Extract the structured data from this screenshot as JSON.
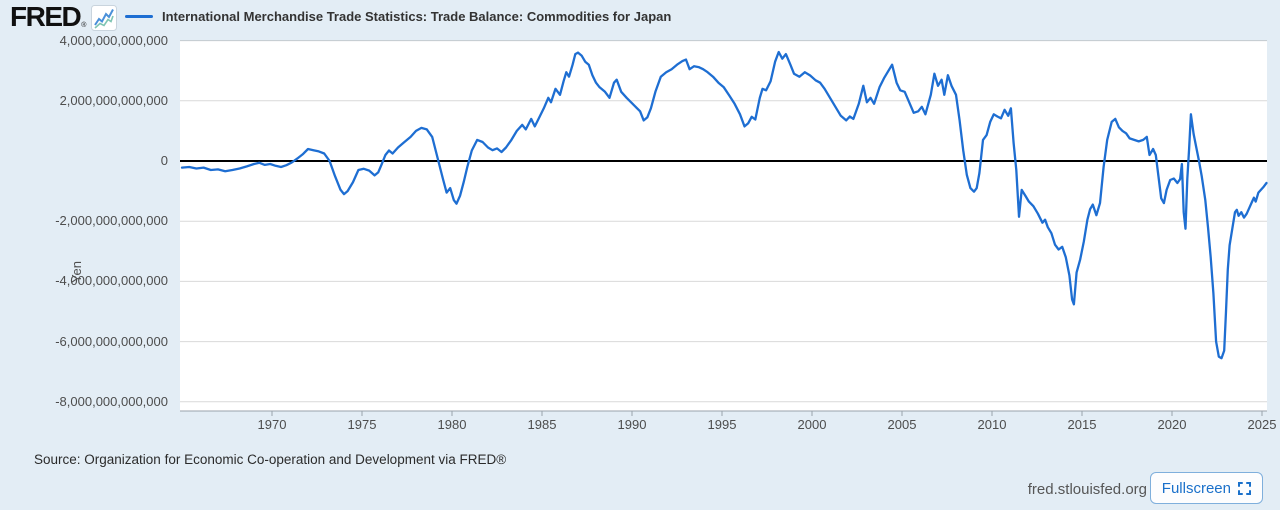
{
  "header": {
    "logo_text": "FRED",
    "logo_reg": "®"
  },
  "source": {
    "text": "Source: Organization for Economic Co-operation and Development via FRED®"
  },
  "footer": {
    "site": "fred.stlouisfed.org",
    "fullscreen_label": "Fullscreen"
  },
  "colors": {
    "background": "#e3edf5",
    "plot_background": "#ffffff",
    "grid": "#d9d9d9",
    "top_border": "#c3c9ce",
    "zero_line": "#000000",
    "axis_line": "#98a2ab",
    "axis_text": "#4d4d4d",
    "series_blue": "#1e6ed2",
    "link_blue": "#1a70ca",
    "logo_icon_blue": "#4a90d9",
    "logo_icon_teal": "#7fc5b3"
  },
  "chart_data": {
    "type": "line",
    "title": "International Merchandise Trade Statistics: Trade Balance: Commodities for Japan",
    "xlabel": "",
    "ylabel": "Yen",
    "legend_position": "top",
    "grid": true,
    "value_unit": "trillions of yen",
    "xlim": [
      1964.9,
      2025.3
    ],
    "ylim_trillions": [
      -8.6,
      4.0
    ],
    "x_ticks": [
      1970,
      1975,
      1980,
      1985,
      1990,
      1995,
      2000,
      2005,
      2010,
      2015,
      2020,
      2025
    ],
    "y_ticks": {
      "values": [
        4,
        2,
        0,
        -2,
        -4,
        -6,
        -8
      ],
      "labels": [
        "4,000,000,000,000",
        "2,000,000,000,000",
        "0",
        "-2,000,000,000,000",
        "-4,000,000,000,000",
        "-6,000,000,000,000",
        "-8,000,000,000,000"
      ]
    },
    "series": [
      {
        "name": "International Merchandise Trade Statistics: Trade Balance: Commodities for Japan",
        "color": "#1e6ed2",
        "points": [
          [
            1965.0,
            -0.22
          ],
          [
            1965.4,
            -0.2
          ],
          [
            1965.8,
            -0.25
          ],
          [
            1966.2,
            -0.22
          ],
          [
            1966.6,
            -0.3
          ],
          [
            1967.0,
            -0.28
          ],
          [
            1967.4,
            -0.34
          ],
          [
            1967.8,
            -0.3
          ],
          [
            1968.2,
            -0.25
          ],
          [
            1968.6,
            -0.18
          ],
          [
            1969.0,
            -0.1
          ],
          [
            1969.3,
            -0.06
          ],
          [
            1969.6,
            -0.13
          ],
          [
            1969.9,
            -0.1
          ],
          [
            1970.2,
            -0.16
          ],
          [
            1970.5,
            -0.2
          ],
          [
            1970.8,
            -0.14
          ],
          [
            1971.1,
            -0.05
          ],
          [
            1971.4,
            0.08
          ],
          [
            1971.7,
            0.22
          ],
          [
            1972.0,
            0.4
          ],
          [
            1972.3,
            0.36
          ],
          [
            1972.6,
            0.32
          ],
          [
            1972.9,
            0.25
          ],
          [
            1973.2,
            0.0
          ],
          [
            1973.5,
            -0.5
          ],
          [
            1973.8,
            -0.95
          ],
          [
            1974.0,
            -1.1
          ],
          [
            1974.2,
            -1.0
          ],
          [
            1974.5,
            -0.7
          ],
          [
            1974.8,
            -0.3
          ],
          [
            1975.1,
            -0.26
          ],
          [
            1975.4,
            -0.32
          ],
          [
            1975.7,
            -0.48
          ],
          [
            1975.9,
            -0.38
          ],
          [
            1976.1,
            -0.1
          ],
          [
            1976.3,
            0.2
          ],
          [
            1976.5,
            0.35
          ],
          [
            1976.7,
            0.25
          ],
          [
            1977.0,
            0.45
          ],
          [
            1977.3,
            0.6
          ],
          [
            1977.7,
            0.8
          ],
          [
            1978.0,
            1.0
          ],
          [
            1978.3,
            1.1
          ],
          [
            1978.6,
            1.05
          ],
          [
            1978.9,
            0.8
          ],
          [
            1979.2,
            0.1
          ],
          [
            1979.5,
            -0.6
          ],
          [
            1979.7,
            -1.05
          ],
          [
            1979.9,
            -0.9
          ],
          [
            1980.1,
            -1.3
          ],
          [
            1980.25,
            -1.42
          ],
          [
            1980.45,
            -1.15
          ],
          [
            1980.65,
            -0.7
          ],
          [
            1980.85,
            -0.2
          ],
          [
            1981.1,
            0.35
          ],
          [
            1981.4,
            0.7
          ],
          [
            1981.7,
            0.63
          ],
          [
            1982.0,
            0.45
          ],
          [
            1982.25,
            0.36
          ],
          [
            1982.5,
            0.42
          ],
          [
            1982.75,
            0.3
          ],
          [
            1983.0,
            0.45
          ],
          [
            1983.3,
            0.7
          ],
          [
            1983.6,
            1.0
          ],
          [
            1983.9,
            1.2
          ],
          [
            1984.1,
            1.05
          ],
          [
            1984.4,
            1.4
          ],
          [
            1984.6,
            1.15
          ],
          [
            1984.85,
            1.45
          ],
          [
            1985.1,
            1.75
          ],
          [
            1985.35,
            2.1
          ],
          [
            1985.5,
            1.95
          ],
          [
            1985.75,
            2.4
          ],
          [
            1986.0,
            2.2
          ],
          [
            1986.2,
            2.65
          ],
          [
            1986.35,
            2.95
          ],
          [
            1986.5,
            2.8
          ],
          [
            1986.7,
            3.2
          ],
          [
            1986.85,
            3.55
          ],
          [
            1987.0,
            3.6
          ],
          [
            1987.2,
            3.5
          ],
          [
            1987.4,
            3.3
          ],
          [
            1987.6,
            3.2
          ],
          [
            1987.8,
            2.85
          ],
          [
            1988.0,
            2.6
          ],
          [
            1988.2,
            2.45
          ],
          [
            1988.5,
            2.3
          ],
          [
            1988.75,
            2.1
          ],
          [
            1989.0,
            2.6
          ],
          [
            1989.15,
            2.7
          ],
          [
            1989.4,
            2.3
          ],
          [
            1989.7,
            2.1
          ],
          [
            1989.95,
            1.95
          ],
          [
            1990.2,
            1.8
          ],
          [
            1990.45,
            1.65
          ],
          [
            1990.65,
            1.35
          ],
          [
            1990.85,
            1.45
          ],
          [
            1991.05,
            1.75
          ],
          [
            1991.3,
            2.3
          ],
          [
            1991.6,
            2.8
          ],
          [
            1991.9,
            2.95
          ],
          [
            1992.2,
            3.05
          ],
          [
            1992.5,
            3.2
          ],
          [
            1992.8,
            3.32
          ],
          [
            1993.0,
            3.37
          ],
          [
            1993.2,
            3.05
          ],
          [
            1993.45,
            3.15
          ],
          [
            1993.7,
            3.12
          ],
          [
            1993.95,
            3.05
          ],
          [
            1994.2,
            2.95
          ],
          [
            1994.5,
            2.8
          ],
          [
            1994.8,
            2.6
          ],
          [
            1995.1,
            2.45
          ],
          [
            1995.4,
            2.18
          ],
          [
            1995.7,
            1.9
          ],
          [
            1996.0,
            1.55
          ],
          [
            1996.25,
            1.15
          ],
          [
            1996.45,
            1.25
          ],
          [
            1996.65,
            1.47
          ],
          [
            1996.85,
            1.38
          ],
          [
            1997.1,
            2.1
          ],
          [
            1997.25,
            2.4
          ],
          [
            1997.45,
            2.35
          ],
          [
            1997.7,
            2.65
          ],
          [
            1997.95,
            3.3
          ],
          [
            1998.15,
            3.62
          ],
          [
            1998.35,
            3.4
          ],
          [
            1998.55,
            3.55
          ],
          [
            1998.8,
            3.2
          ],
          [
            1999.0,
            2.9
          ],
          [
            1999.3,
            2.8
          ],
          [
            1999.6,
            2.95
          ],
          [
            1999.9,
            2.84
          ],
          [
            2000.2,
            2.68
          ],
          [
            2000.45,
            2.6
          ],
          [
            2000.7,
            2.4
          ],
          [
            2001.0,
            2.1
          ],
          [
            2001.3,
            1.8
          ],
          [
            2001.6,
            1.5
          ],
          [
            2001.9,
            1.35
          ],
          [
            2002.1,
            1.48
          ],
          [
            2002.3,
            1.4
          ],
          [
            2002.6,
            1.9
          ],
          [
            2002.85,
            2.5
          ],
          [
            2003.05,
            1.95
          ],
          [
            2003.25,
            2.1
          ],
          [
            2003.45,
            1.9
          ],
          [
            2003.75,
            2.45
          ],
          [
            2004.0,
            2.75
          ],
          [
            2004.25,
            3.0
          ],
          [
            2004.45,
            3.2
          ],
          [
            2004.7,
            2.6
          ],
          [
            2004.9,
            2.35
          ],
          [
            2005.15,
            2.3
          ],
          [
            2005.4,
            1.95
          ],
          [
            2005.65,
            1.6
          ],
          [
            2005.9,
            1.65
          ],
          [
            2006.1,
            1.8
          ],
          [
            2006.3,
            1.55
          ],
          [
            2006.6,
            2.2
          ],
          [
            2006.8,
            2.9
          ],
          [
            2007.0,
            2.5
          ],
          [
            2007.2,
            2.7
          ],
          [
            2007.35,
            2.2
          ],
          [
            2007.55,
            2.85
          ],
          [
            2007.75,
            2.5
          ],
          [
            2008.0,
            2.2
          ],
          [
            2008.2,
            1.35
          ],
          [
            2008.4,
            0.36
          ],
          [
            2008.6,
            -0.46
          ],
          [
            2008.8,
            -0.9
          ],
          [
            2009.0,
            -1.02
          ],
          [
            2009.15,
            -0.9
          ],
          [
            2009.3,
            -0.4
          ],
          [
            2009.5,
            0.7
          ],
          [
            2009.7,
            0.86
          ],
          [
            2009.9,
            1.3
          ],
          [
            2010.1,
            1.55
          ],
          [
            2010.3,
            1.48
          ],
          [
            2010.5,
            1.42
          ],
          [
            2010.7,
            1.7
          ],
          [
            2010.9,
            1.5
          ],
          [
            2011.05,
            1.75
          ],
          [
            2011.2,
            0.6
          ],
          [
            2011.35,
            -0.3
          ],
          [
            2011.5,
            -1.85
          ],
          [
            2011.65,
            -0.96
          ],
          [
            2011.85,
            -1.15
          ],
          [
            2012.05,
            -1.35
          ],
          [
            2012.3,
            -1.5
          ],
          [
            2012.55,
            -1.75
          ],
          [
            2012.8,
            -2.05
          ],
          [
            2012.95,
            -1.95
          ],
          [
            2013.1,
            -2.2
          ],
          [
            2013.3,
            -2.4
          ],
          [
            2013.5,
            -2.78
          ],
          [
            2013.7,
            -2.94
          ],
          [
            2013.9,
            -2.85
          ],
          [
            2014.1,
            -3.2
          ],
          [
            2014.3,
            -3.8
          ],
          [
            2014.45,
            -4.6
          ],
          [
            2014.55,
            -4.76
          ],
          [
            2014.7,
            -3.7
          ],
          [
            2014.9,
            -3.27
          ],
          [
            2015.1,
            -2.68
          ],
          [
            2015.3,
            -1.95
          ],
          [
            2015.45,
            -1.6
          ],
          [
            2015.6,
            -1.45
          ],
          [
            2015.8,
            -1.8
          ],
          [
            2016.0,
            -1.4
          ],
          [
            2016.2,
            -0.2
          ],
          [
            2016.4,
            0.7
          ],
          [
            2016.65,
            1.3
          ],
          [
            2016.85,
            1.4
          ],
          [
            2017.05,
            1.12
          ],
          [
            2017.25,
            1.0
          ],
          [
            2017.45,
            0.92
          ],
          [
            2017.65,
            0.75
          ],
          [
            2017.9,
            0.7
          ],
          [
            2018.15,
            0.65
          ],
          [
            2018.4,
            0.7
          ],
          [
            2018.6,
            0.8
          ],
          [
            2018.75,
            0.2
          ],
          [
            2018.95,
            0.4
          ],
          [
            2019.1,
            0.2
          ],
          [
            2019.25,
            -0.52
          ],
          [
            2019.4,
            -1.24
          ],
          [
            2019.55,
            -1.4
          ],
          [
            2019.7,
            -0.96
          ],
          [
            2019.9,
            -0.63
          ],
          [
            2020.1,
            -0.58
          ],
          [
            2020.3,
            -0.73
          ],
          [
            2020.45,
            -0.6
          ],
          [
            2020.55,
            -0.1
          ],
          [
            2020.65,
            -1.7
          ],
          [
            2020.75,
            -2.25
          ],
          [
            2020.85,
            -0.6
          ],
          [
            2020.95,
            0.4
          ],
          [
            2021.05,
            1.55
          ],
          [
            2021.2,
            0.9
          ],
          [
            2021.35,
            0.45
          ],
          [
            2021.5,
            0.0
          ],
          [
            2021.65,
            -0.5
          ],
          [
            2021.85,
            -1.3
          ],
          [
            2022.0,
            -2.2
          ],
          [
            2022.15,
            -3.2
          ],
          [
            2022.3,
            -4.4
          ],
          [
            2022.45,
            -6.0
          ],
          [
            2022.6,
            -6.5
          ],
          [
            2022.75,
            -6.55
          ],
          [
            2022.9,
            -6.3
          ],
          [
            2023.0,
            -5.0
          ],
          [
            2023.1,
            -3.6
          ],
          [
            2023.2,
            -2.8
          ],
          [
            2023.35,
            -2.25
          ],
          [
            2023.5,
            -1.7
          ],
          [
            2023.6,
            -1.62
          ],
          [
            2023.7,
            -1.82
          ],
          [
            2023.85,
            -1.7
          ],
          [
            2024.0,
            -1.88
          ],
          [
            2024.15,
            -1.75
          ],
          [
            2024.3,
            -1.55
          ],
          [
            2024.45,
            -1.35
          ],
          [
            2024.55,
            -1.22
          ],
          [
            2024.65,
            -1.35
          ],
          [
            2024.8,
            -1.05
          ],
          [
            2024.95,
            -0.95
          ],
          [
            2025.1,
            -0.85
          ],
          [
            2025.25,
            -0.73
          ]
        ]
      }
    ]
  }
}
